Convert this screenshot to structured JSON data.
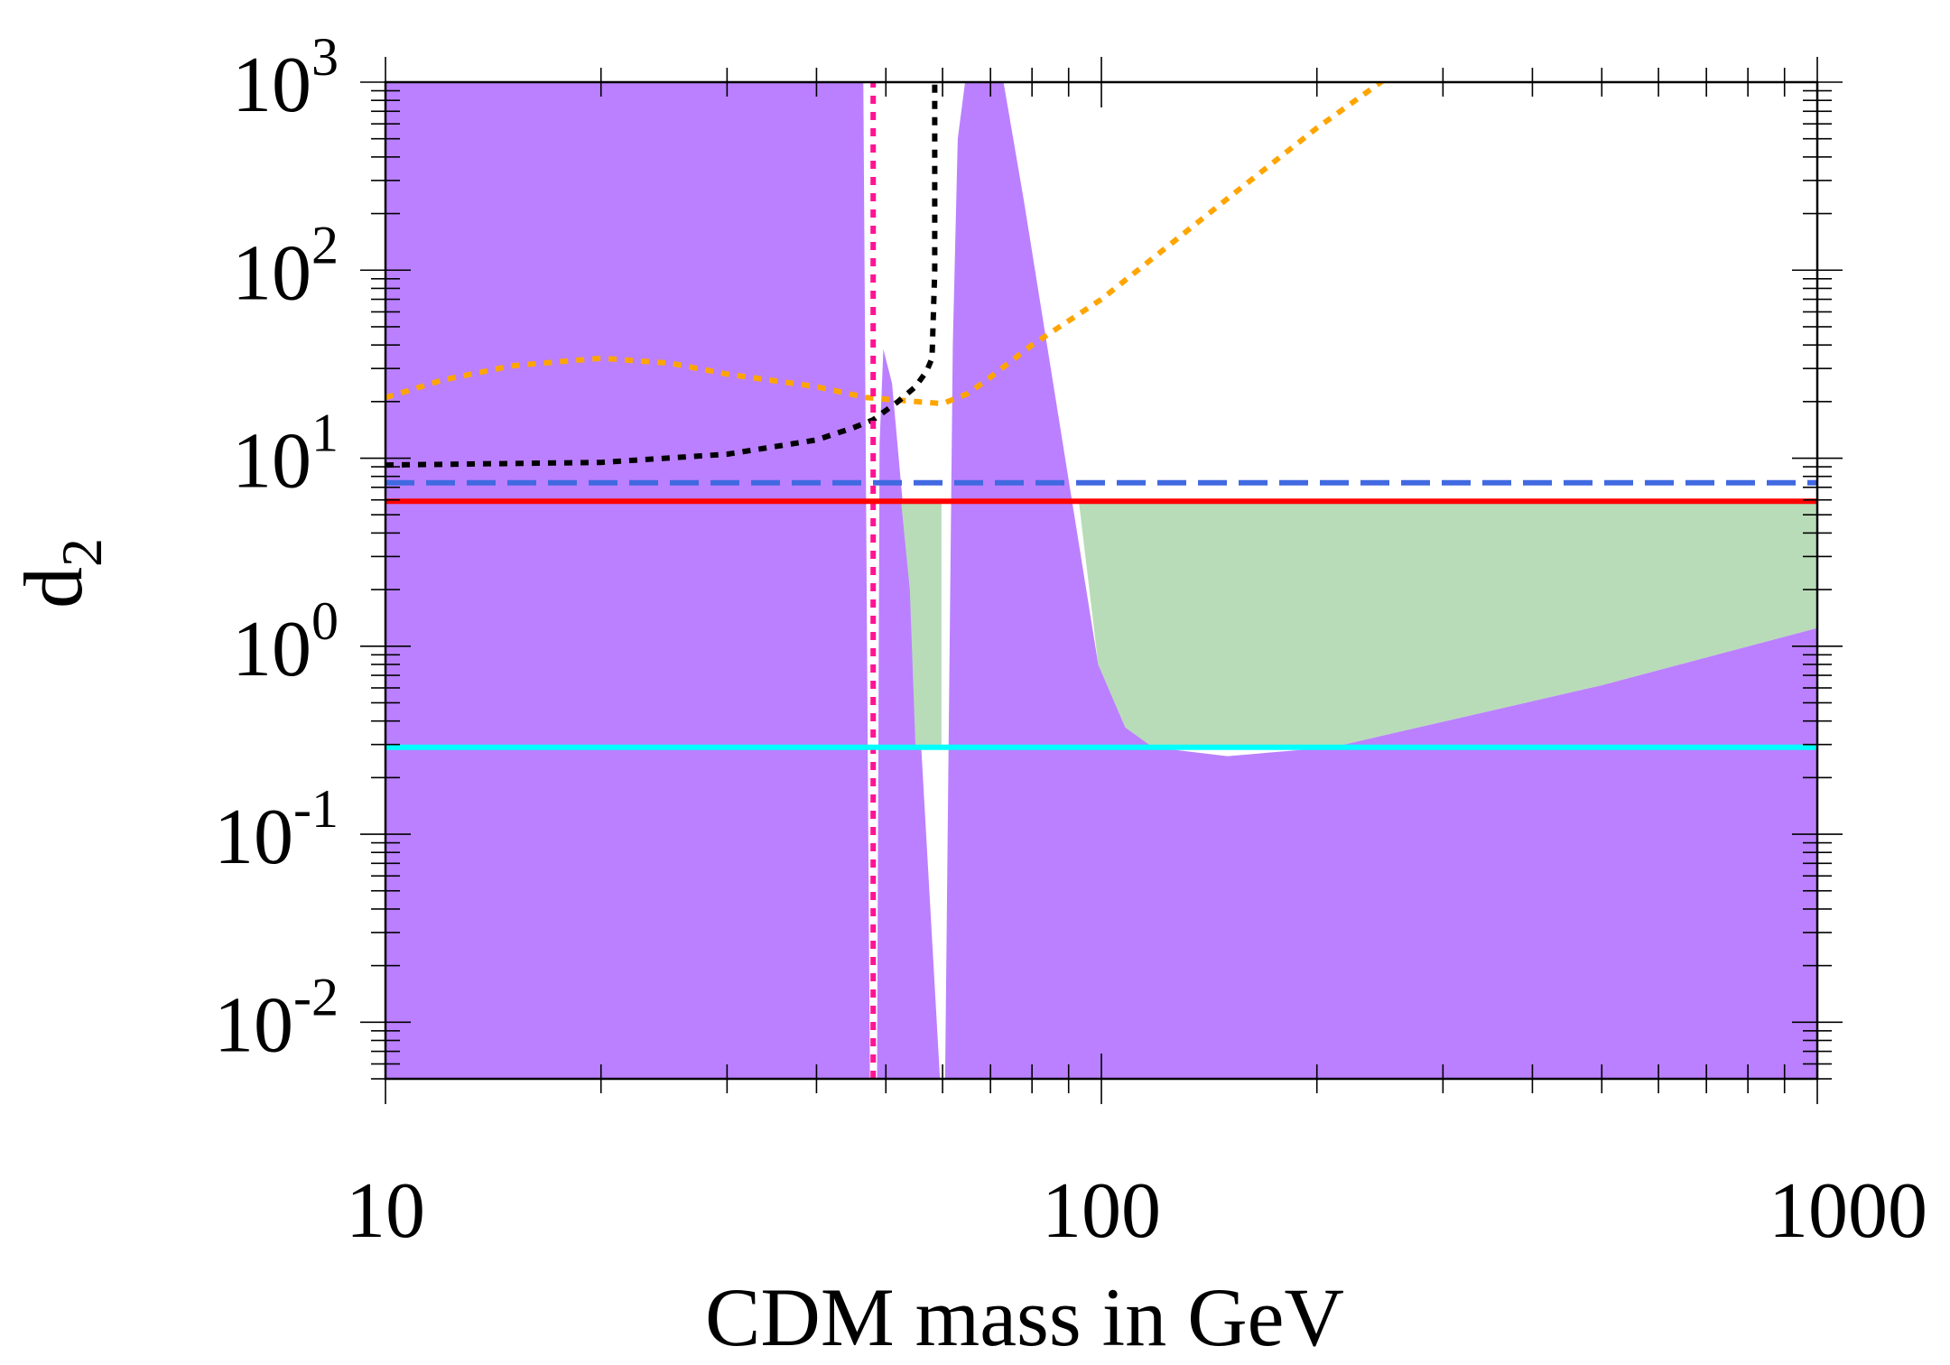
{
  "chart_data": {
    "type": "line",
    "title": "",
    "xlabel": "CDM mass in GeV",
    "ylabel": "d",
    "ylabel_subscript": "2",
    "xscale": "log",
    "yscale": "log",
    "xlim": [
      10,
      1000
    ],
    "ylim": [
      0.005,
      1000
    ],
    "x_ticks": [
      {
        "value": 10,
        "label": "10"
      },
      {
        "value": 100,
        "label": "100"
      },
      {
        "value": 1000,
        "label": "1000"
      }
    ],
    "y_ticks": [
      {
        "value": 0.01,
        "base": "10",
        "exp": "-2"
      },
      {
        "value": 0.1,
        "base": "10",
        "exp": "-1"
      },
      {
        "value": 1,
        "base": "10",
        "exp": "0"
      },
      {
        "value": 10,
        "base": "10",
        "exp": "1"
      },
      {
        "value": 100,
        "base": "10",
        "exp": "2"
      },
      {
        "value": 1000,
        "base": "10",
        "exp": "3"
      }
    ],
    "regions": [
      {
        "name": "excluded-region",
        "color": "#bb80ff",
        "points": [
          [
            10,
            0.005
          ],
          [
            10,
            1000
          ],
          [
            46.5,
            1000
          ],
          [
            47.5,
            0.005
          ],
          [
            59.5,
            0.005
          ],
          [
            55,
            1
          ],
          [
            51,
            25
          ],
          [
            49.6,
            38
          ],
          [
            49,
            12
          ],
          [
            48.6,
            0.005
          ],
          [
            10,
            0.005
          ]
        ]
      },
      {
        "name": "excluded-region-upper",
        "color": "#bb80ff",
        "points": [
          [
            60.5,
            0.005
          ],
          [
            62,
            40
          ],
          [
            63,
            500
          ],
          [
            64.5,
            1000
          ],
          [
            73,
            1000
          ],
          [
            78,
            230
          ],
          [
            99,
            0.8
          ],
          [
            108,
            0.37
          ],
          [
            118,
            0.29
          ],
          [
            150,
            0.26
          ],
          [
            210,
            0.29
          ],
          [
            500,
            0.62
          ],
          [
            1000,
            1.25
          ],
          [
            1000,
            0.005
          ],
          [
            60.5,
            0.005
          ]
        ]
      },
      {
        "name": "allowed-region",
        "color": "#b8dcb8",
        "points": [
          [
            52.5,
            5.9
          ],
          [
            59.8,
            5.9
          ],
          [
            59.8,
            0.29
          ],
          [
            55,
            0.29
          ],
          [
            54,
            2
          ],
          [
            52.5,
            5.9
          ]
        ]
      },
      {
        "name": "allowed-region-right",
        "color": "#b8dcb8",
        "points": [
          [
            93,
            5.9
          ],
          [
            1000,
            5.9
          ],
          [
            1000,
            1.25
          ],
          [
            500,
            0.62
          ],
          [
            210,
            0.29
          ],
          [
            118,
            0.29
          ],
          [
            108,
            0.37
          ],
          [
            99,
            0.8
          ],
          [
            93,
            5.9
          ]
        ]
      }
    ],
    "series": [
      {
        "name": "orange-dotted-bound",
        "color": "#ffa500",
        "style": "dotted",
        "x": [
          10,
          12,
          15,
          20,
          25,
          30,
          40,
          47,
          55,
          60,
          65,
          70,
          80,
          100,
          150,
          200,
          250
        ],
        "y": [
          21,
          26,
          31,
          34,
          32,
          28,
          24,
          21,
          20,
          19.5,
          22,
          27,
          40,
          70,
          240,
          570,
          1050
        ]
      },
      {
        "name": "black-dotted-bound",
        "color": "#000000",
        "style": "dotted",
        "x": [
          10,
          20,
          30,
          40,
          45,
          48,
          52,
          55,
          57,
          58,
          58.5,
          58.5
        ],
        "y": [
          9.2,
          9.5,
          10.5,
          12.5,
          14.5,
          16,
          20,
          24,
          29,
          34,
          100,
          1000
        ]
      },
      {
        "name": "pink-dotted-line",
        "color": "#ff1493",
        "style": "dotted",
        "x": [
          48,
          48
        ],
        "y": [
          0.005,
          1000
        ]
      },
      {
        "name": "blue-dashed-line",
        "color": "#4169e1",
        "style": "dashed",
        "x": [
          10,
          1000
        ],
        "y": [
          7.4,
          7.4
        ]
      },
      {
        "name": "red-line",
        "color": "#ff0000",
        "style": "solid",
        "x": [
          10,
          1000
        ],
        "y": [
          5.9,
          5.9
        ]
      },
      {
        "name": "cyan-line",
        "color": "#00ffff",
        "style": "solid",
        "x": [
          10,
          1000
        ],
        "y": [
          0.29,
          0.29
        ]
      }
    ]
  }
}
